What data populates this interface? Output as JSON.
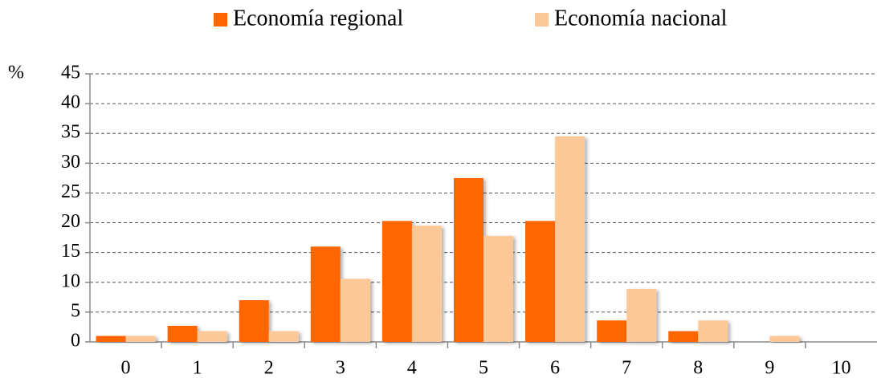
{
  "chart_data": {
    "type": "bar",
    "y_label": "%",
    "categories": [
      "0",
      "1",
      "2",
      "3",
      "4",
      "5",
      "6",
      "7",
      "8",
      "9",
      "10"
    ],
    "series": [
      {
        "name": "Economía regional",
        "color": "#ff6600",
        "values": [
          1,
          2.7,
          7,
          16,
          20.3,
          27.5,
          20.3,
          3.6,
          1.8,
          0,
          0
        ]
      },
      {
        "name": "Economía nacional",
        "color": "#fdc897",
        "values": [
          1,
          1.8,
          1.8,
          10.6,
          19.5,
          17.8,
          34.5,
          8.9,
          3.6,
          1,
          0
        ]
      }
    ],
    "ylim": [
      0,
      45
    ],
    "yticks": [
      0,
      5,
      10,
      15,
      20,
      25,
      30,
      35,
      40,
      45
    ],
    "grid": true,
    "legend": "top"
  }
}
